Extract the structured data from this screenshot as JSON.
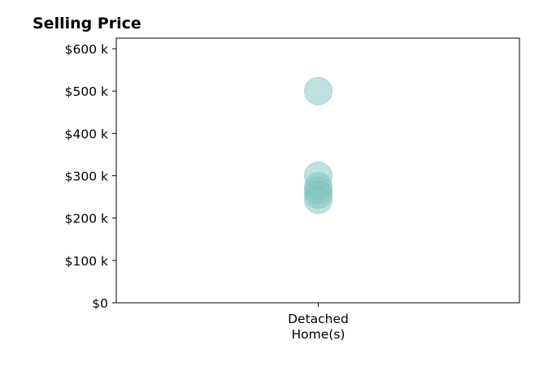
{
  "chart_data": {
    "type": "scatter",
    "title": "Selling Price",
    "xlabel": "",
    "ylabel": "",
    "categories": [
      [
        "Detached",
        "Home(s)"
      ]
    ],
    "y_tick_labels": [
      "$0",
      "$100 k",
      "$200 k",
      "$300 k",
      "$400 k",
      "$500 k",
      "$600 k"
    ],
    "y_tick_values": [
      0,
      100000,
      200000,
      300000,
      400000,
      500000,
      600000
    ],
    "ylim": [
      0,
      625000
    ],
    "grid": false,
    "legend": "none",
    "series": [
      {
        "category": 0,
        "values": [
          500000,
          300000,
          275000,
          265000,
          255000,
          243000
        ]
      }
    ],
    "colors": {
      "marker": "#7fc4bf",
      "axis": "#000000"
    },
    "marker_opacity": 0.5
  }
}
